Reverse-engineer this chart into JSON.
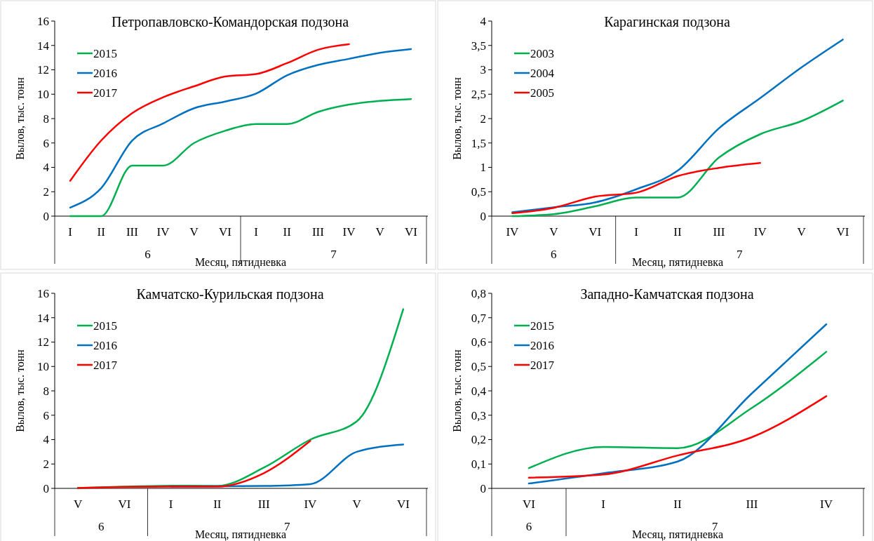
{
  "chart_data": [
    {
      "type": "line",
      "title": "Петропавловско-Командорская подзона",
      "xlabel": "Месяц, пятидневка",
      "ylabel": "Вылов, тыс. тонн",
      "categories": [
        "I",
        "II",
        "III",
        "IV",
        "V",
        "VI",
        "I",
        "II",
        "III",
        "IV",
        "V",
        "VI"
      ],
      "annotations": [
        "6",
        "7"
      ],
      "ylim": [
        0,
        16
      ],
      "yticks": [
        0,
        2,
        4,
        6,
        8,
        10,
        12,
        14,
        16
      ],
      "grid": false,
      "legend": "top left",
      "series": [
        {
          "name": "2015",
          "color": "#00b050",
          "values": [
            0,
            0,
            4.15,
            4.15,
            6,
            7,
            7.55,
            7.55,
            8.55,
            9.15,
            9.45,
            9.6
          ]
        },
        {
          "name": "2016",
          "color": "#0070c0",
          "values": [
            0.7,
            2.3,
            6.2,
            7.6,
            8.85,
            9.4,
            10.05,
            11.55,
            12.4,
            12.9,
            13.4,
            13.7
          ]
        },
        {
          "name": "2017",
          "color": "#ff0000",
          "values": [
            2.9,
            6.2,
            8.45,
            9.75,
            10.65,
            11.45,
            11.65,
            12.55,
            13.65,
            14.1,
            null,
            null
          ]
        }
      ]
    },
    {
      "type": "line",
      "title": "Карагинская подзона",
      "xlabel": "Месяц, пятидневка",
      "ylabel": "Вылов, тыс. тонн",
      "categories": [
        "IV",
        "V",
        "VI",
        "I",
        "II",
        "III",
        "IV",
        "V",
        "VI"
      ],
      "annotations": [
        "6",
        "7"
      ],
      "ylim": [
        0,
        4
      ],
      "yticks": [
        0,
        {
          "value": 0.5,
          "label": "0,5"
        },
        1,
        {
          "value": 1.5,
          "label": "1,5"
        },
        2,
        {
          "value": 2.5,
          "label": "2,5"
        },
        3,
        {
          "value": 3.5,
          "label": "3,5"
        },
        4
      ],
      "grid": false,
      "legend": "top left",
      "series": [
        {
          "name": "2003",
          "color": "#00b050",
          "values": [
            0,
            0.04,
            0.2,
            0.38,
            0.38,
            1.2,
            1.68,
            1.95,
            2.37
          ]
        },
        {
          "name": "2004",
          "color": "#0070c0",
          "values": [
            0.08,
            0.18,
            0.28,
            0.55,
            0.93,
            1.8,
            2.42,
            3.05,
            3.62
          ]
        },
        {
          "name": "2005",
          "color": "#ff0000",
          "values": [
            0.06,
            0.17,
            0.4,
            0.48,
            0.82,
            0.99,
            1.09,
            null,
            null
          ]
        }
      ]
    },
    {
      "type": "line",
      "title": "Камчатско-Курильская подзона",
      "xlabel": "Месяц, пятидневка",
      "ylabel": "Вылов, тыс. тонн",
      "categories": [
        "V",
        "VI",
        "I",
        "II",
        "III",
        "IV",
        "V",
        "VI"
      ],
      "annotations": [
        "6",
        "7"
      ],
      "ylim": [
        0,
        16
      ],
      "yticks": [
        0,
        2,
        4,
        6,
        8,
        10,
        12,
        14,
        16
      ],
      "grid": false,
      "legend": "top left",
      "series": [
        {
          "name": "2015",
          "color": "#00b050",
          "values": [
            0.03,
            0.15,
            0.22,
            0.2,
            1.7,
            4.0,
            5.5,
            14.7
          ]
        },
        {
          "name": "2016",
          "color": "#0070c0",
          "values": [
            null,
            null,
            0.15,
            0.17,
            0.2,
            0.35,
            3.0,
            3.6
          ]
        },
        {
          "name": "2017",
          "color": "#ff0000",
          "values": [
            0.03,
            0.12,
            0.15,
            0.15,
            1.25,
            3.9,
            null,
            null
          ]
        }
      ]
    },
    {
      "type": "line",
      "title": "Западно-Камчатская подзона",
      "xlabel": "Месяц, пятидневка",
      "ylabel": "Вылов, тыс. тонн",
      "categories": [
        "VI",
        "I",
        "II",
        "III",
        "IV"
      ],
      "annotations": [
        "6",
        "7"
      ],
      "ylim": [
        0,
        0.8
      ],
      "yticks": [
        0,
        {
          "value": 0.1,
          "label": "0,1"
        },
        {
          "value": 0.2,
          "label": "0,2"
        },
        {
          "value": 0.3,
          "label": "0,3"
        },
        {
          "value": 0.4,
          "label": "0,4"
        },
        {
          "value": 0.5,
          "label": "0,5"
        },
        {
          "value": 0.6,
          "label": "0,6"
        },
        {
          "value": 0.7,
          "label": "0,7"
        },
        {
          "value": 0.8,
          "label": "0,8"
        }
      ],
      "grid": false,
      "legend": "top left",
      "series": [
        {
          "name": "2015",
          "color": "#00b050",
          "values": [
            0.083,
            0.17,
            0.165,
            0.33,
            0.56
          ]
        },
        {
          "name": "2016",
          "color": "#0070c0",
          "values": [
            0.02,
            0.062,
            0.11,
            0.39,
            0.673
          ]
        },
        {
          "name": "2017",
          "color": "#ff0000",
          "values": [
            0.044,
            0.057,
            0.135,
            0.21,
            0.378
          ]
        }
      ]
    }
  ]
}
